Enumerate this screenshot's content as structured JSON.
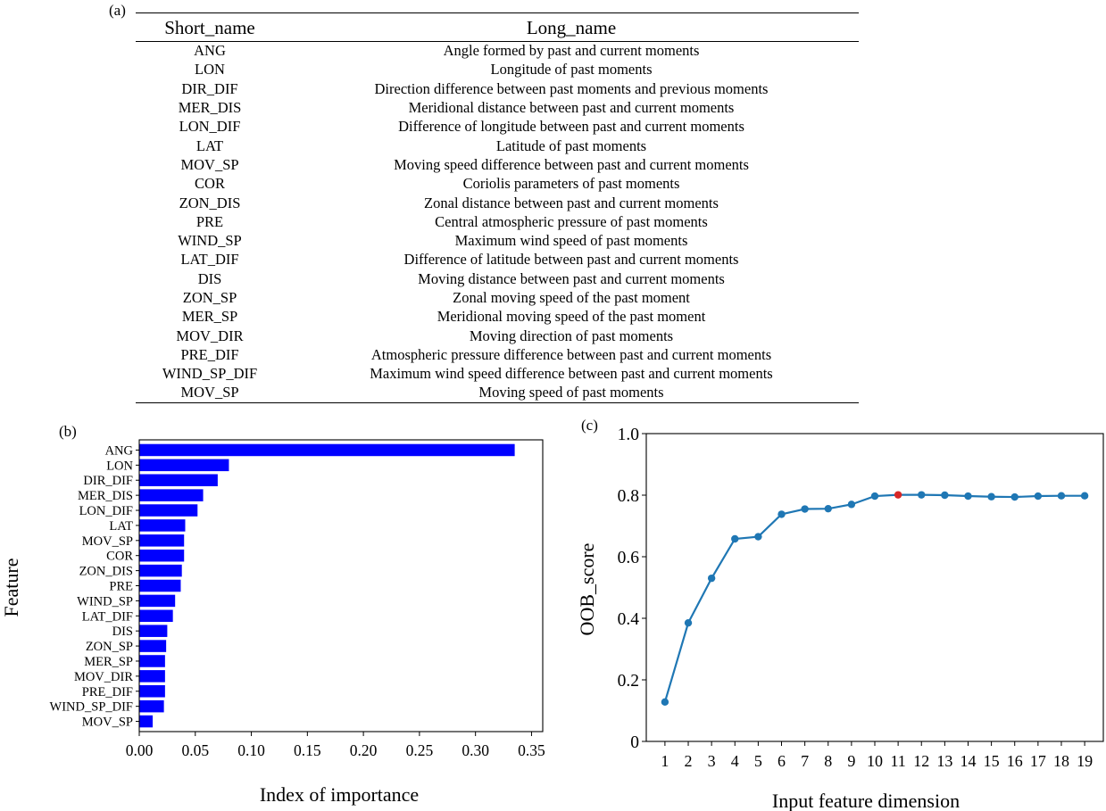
{
  "panels": {
    "a": "(a)",
    "b": "(b)",
    "c": "(c)"
  },
  "table": {
    "headers": [
      "Short_name",
      "Long_name"
    ],
    "rows": [
      [
        "ANG",
        "Angle formed by past and current moments"
      ],
      [
        "LON",
        "Longitude of past moments"
      ],
      [
        "DIR_DIF",
        "Direction difference between past moments and previous moments"
      ],
      [
        "MER_DIS",
        "Meridional distance between past and current moments"
      ],
      [
        "LON_DIF",
        "Difference of longitude between past and current moments"
      ],
      [
        "LAT",
        "Latitude of past moments"
      ],
      [
        "MOV_SP",
        "Moving speed difference between past and current moments"
      ],
      [
        "COR",
        "Coriolis parameters of past moments"
      ],
      [
        "ZON_DIS",
        "Zonal distance between past and current moments"
      ],
      [
        "PRE",
        "Central atmospheric pressure of past moments"
      ],
      [
        "WIND_SP",
        "Maximum wind speed of past moments"
      ],
      [
        "LAT_DIF",
        "Difference of latitude between past and current moments"
      ],
      [
        "DIS",
        "Moving distance between past and current moments"
      ],
      [
        "ZON_SP",
        "Zonal moving speed of the past moment"
      ],
      [
        "MER_SP",
        "Meridional moving speed of the past moment"
      ],
      [
        "MOV_DIR",
        "Moving direction of past moments"
      ],
      [
        "PRE_DIF",
        "Atmospheric pressure difference between past and current moments"
      ],
      [
        "WIND_SP_DIF",
        "Maximum wind speed difference between past and current moments"
      ],
      [
        "MOV_SP",
        "Moving speed of past moments"
      ]
    ]
  },
  "chart_data": [
    {
      "type": "bar",
      "orientation": "horizontal",
      "categories": [
        "ANG",
        "LON",
        "DIR_DIF",
        "MER_DIS",
        "LON_DIF",
        "LAT",
        "MOV_SP",
        "COR",
        "ZON_DIS",
        "PRE",
        "WIND_SP",
        "LAT_DIF",
        "DIS",
        "ZON_SP",
        "MER_SP",
        "MOV_DIR",
        "PRE_DIF",
        "WIND_SP_DIF",
        "MOV_SP"
      ],
      "values": [
        0.335,
        0.08,
        0.07,
        0.057,
        0.052,
        0.041,
        0.04,
        0.04,
        0.038,
        0.037,
        0.032,
        0.03,
        0.025,
        0.024,
        0.023,
        0.023,
        0.023,
        0.022,
        0.012
      ],
      "xlabel": "Index of importance",
      "ylabel": "Feature",
      "xlim": [
        0,
        0.36
      ],
      "xticks": [
        0.0,
        0.05,
        0.1,
        0.15,
        0.2,
        0.25,
        0.3,
        0.35
      ],
      "xtick_labels": [
        "0.00",
        "0.05",
        "0.10",
        "0.15",
        "0.20",
        "0.25",
        "0.30",
        "0.35"
      ],
      "bar_color": "#0000ff",
      "grid": false
    },
    {
      "type": "line",
      "x": [
        1,
        2,
        3,
        4,
        5,
        6,
        7,
        8,
        9,
        10,
        11,
        12,
        13,
        14,
        15,
        16,
        17,
        18,
        19
      ],
      "y": [
        0.128,
        0.385,
        0.53,
        0.658,
        0.665,
        0.738,
        0.755,
        0.756,
        0.77,
        0.797,
        0.801,
        0.801,
        0.8,
        0.797,
        0.795,
        0.794,
        0.797,
        0.798,
        0.798
      ],
      "highlight_index": 10,
      "xlabel": "Input feature dimension",
      "ylabel": "OOB_score",
      "xlim": [
        0.2,
        19.8
      ],
      "ylim": [
        0,
        1.0
      ],
      "yticks": [
        0,
        0.2,
        0.4,
        0.6,
        0.8,
        1.0
      ],
      "ytick_labels": [
        "0",
        "0.2",
        "0.4",
        "0.6",
        "0.8",
        "1.0"
      ],
      "xtick_labels": [
        "1",
        "2",
        "3",
        "4",
        "5",
        "6",
        "7",
        "8",
        "9",
        "10",
        "11",
        "12",
        "13",
        "14",
        "15",
        "16",
        "17",
        "18",
        "19"
      ],
      "line_color": "#1f77b4",
      "highlight_color": "#d62728",
      "grid": false
    }
  ]
}
